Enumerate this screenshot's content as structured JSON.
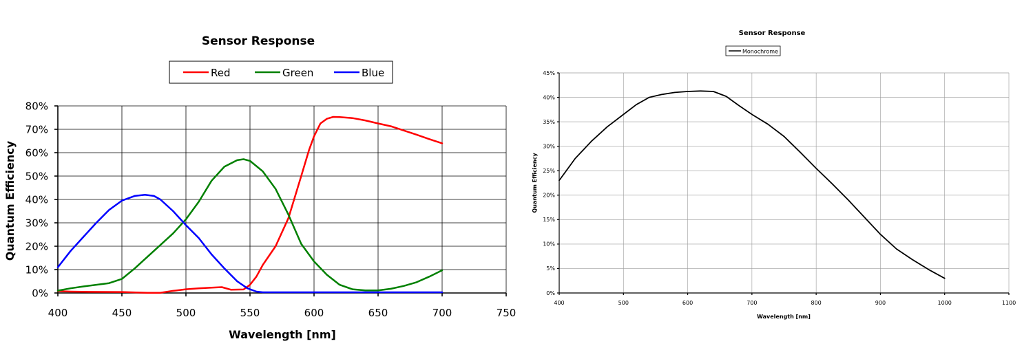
{
  "chart_data": [
    {
      "type": "line",
      "title": "Sensor Response",
      "xlabel": "Wavelength [nm]",
      "ylabel": "Quantum Efficiency",
      "xlim": [
        400,
        750
      ],
      "ylim": [
        0,
        80
      ],
      "x_ticks": [
        "400",
        "450",
        "500",
        "550",
        "600",
        "650",
        "700",
        "750"
      ],
      "y_ticks": [
        "0%",
        "10%",
        "20%",
        "30%",
        "40%",
        "50%",
        "60%",
        "70%",
        "80%"
      ],
      "grid": true,
      "legend_position": "top",
      "series": [
        {
          "name": "Red",
          "color": "#ff0000",
          "x": [
            400,
            410,
            420,
            450,
            470,
            480,
            490,
            500,
            510,
            520,
            528,
            535,
            545,
            550,
            555,
            560,
            570,
            580,
            590,
            596,
            600,
            605,
            610,
            615,
            620,
            630,
            640,
            650,
            660,
            670,
            680,
            690,
            700
          ],
          "y": [
            0.8,
            0.6,
            0.5,
            0.4,
            0.1,
            0.1,
            0.9,
            1.6,
            2.0,
            2.3,
            2.5,
            1.4,
            1.5,
            3.5,
            7.0,
            12.0,
            20.0,
            32.0,
            50.0,
            61.0,
            67.0,
            72.5,
            74.5,
            75.3,
            75.2,
            74.8,
            73.8,
            72.5,
            71.3,
            69.5,
            67.7,
            65.8,
            64.0
          ]
        },
        {
          "name": "Green",
          "color": "#008000",
          "x": [
            400,
            410,
            420,
            430,
            440,
            450,
            460,
            470,
            480,
            490,
            500,
            510,
            520,
            530,
            540,
            545,
            550,
            560,
            570,
            580,
            590,
            600,
            610,
            620,
            630,
            640,
            650,
            660,
            670,
            680,
            690,
            700
          ],
          "y": [
            1.0,
            2.0,
            2.8,
            3.5,
            4.2,
            6.0,
            10.5,
            15.5,
            20.5,
            25.5,
            31.5,
            39.0,
            48.0,
            54.0,
            56.8,
            57.2,
            56.5,
            52.0,
            44.5,
            33.5,
            21.0,
            13.5,
            7.8,
            3.5,
            1.6,
            1.1,
            1.1,
            1.8,
            3.0,
            4.6,
            7.0,
            9.7
          ]
        },
        {
          "name": "Blue",
          "color": "#0000ff",
          "x": [
            400,
            410,
            420,
            430,
            440,
            450,
            460,
            468,
            475,
            480,
            490,
            500,
            510,
            520,
            530,
            540,
            548,
            555,
            560,
            570,
            600,
            650,
            700
          ],
          "y": [
            11.0,
            18.0,
            24.0,
            30.0,
            35.5,
            39.5,
            41.5,
            42.0,
            41.5,
            40.0,
            35.0,
            29.0,
            23.5,
            16.5,
            10.5,
            5.0,
            2.0,
            0.6,
            0.3,
            0.3,
            0.3,
            0.3,
            0.3
          ]
        }
      ]
    },
    {
      "type": "line",
      "title": "Sensor Response",
      "xlabel": "Wavelength [nm]",
      "ylabel": "Quantum Efficiency",
      "xlim": [
        400,
        1100
      ],
      "ylim": [
        0,
        45
      ],
      "x_ticks": [
        "400",
        "500",
        "600",
        "700",
        "800",
        "900",
        "1000",
        "1100"
      ],
      "y_ticks": [
        "0%",
        "5%",
        "10%",
        "15%",
        "20%",
        "25%",
        "30%",
        "35%",
        "40%",
        "45%"
      ],
      "grid": true,
      "legend_position": "top",
      "series": [
        {
          "name": "Monochrome",
          "color": "#000000",
          "x": [
            400,
            425,
            450,
            475,
            500,
            520,
            540,
            560,
            580,
            600,
            620,
            640,
            660,
            680,
            700,
            725,
            750,
            775,
            800,
            825,
            850,
            875,
            900,
            925,
            950,
            975,
            1000
          ],
          "y": [
            23.0,
            27.5,
            31.0,
            34.0,
            36.5,
            38.5,
            40.0,
            40.6,
            41.0,
            41.2,
            41.3,
            41.2,
            40.2,
            38.3,
            36.5,
            34.5,
            32.0,
            28.8,
            25.5,
            22.3,
            19.0,
            15.5,
            12.0,
            9.0,
            6.8,
            4.8,
            3.0
          ]
        }
      ]
    }
  ]
}
